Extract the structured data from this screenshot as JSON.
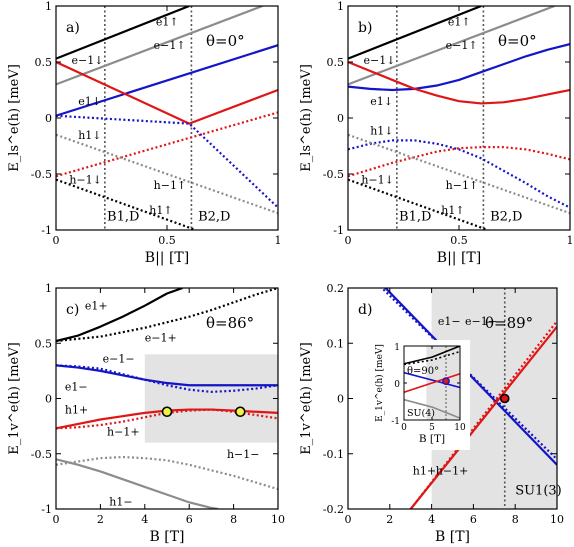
{
  "colors": {
    "black": "#000000",
    "gray": "#8c8c8c",
    "blue": "#1515c8",
    "red": "#e01515",
    "shade": "#e3e3e3",
    "marker": "#f2f246"
  },
  "chart_data": [
    {
      "id": "a",
      "type": "line",
      "panel_label": "a)",
      "annotation": "θ=0°",
      "xlabel": "B|| [T]",
      "ylabel": "E_ls^e(h) [meV]",
      "xlim": [
        0,
        1
      ],
      "ylim": [
        -1,
        1
      ],
      "xticks": [
        "0",
        "0.5",
        "1"
      ],
      "yticks": [
        "-1",
        "-0.5",
        "0",
        "0.5",
        "1"
      ],
      "vlines": [
        {
          "x": 0.22,
          "label": "B1,D"
        },
        {
          "x": 0.61,
          "label": "B2,D"
        }
      ],
      "series": [
        {
          "name": "e1↑",
          "color": "black",
          "dash": false,
          "x": [
            0,
            0.6
          ],
          "y": [
            0.53,
            1.0
          ]
        },
        {
          "name": "e−1↑",
          "color": "gray",
          "dash": false,
          "x": [
            0,
            0.93
          ],
          "y": [
            0.3,
            1.0
          ]
        },
        {
          "name": "e1↓",
          "color": "blue",
          "dash": false,
          "x": [
            0,
            1
          ],
          "y": [
            0.02,
            0.65
          ]
        },
        {
          "name": "e−1↓",
          "color": "red",
          "dash": false,
          "x": [
            0,
            0.6,
            1
          ],
          "y": [
            0.5,
            -0.05,
            0.25
          ]
        },
        {
          "name": "h1↓",
          "color": "blue",
          "dash": true,
          "x": [
            0,
            0.6,
            1
          ],
          "y": [
            0.02,
            -0.05,
            -0.8
          ]
        },
        {
          "name": "h−1↓",
          "color": "red",
          "dash": true,
          "x": [
            0,
            1
          ],
          "y": [
            -0.52,
            0.05
          ]
        },
        {
          "name": "h−1↑",
          "color": "gray",
          "dash": true,
          "x": [
            0,
            1
          ],
          "y": [
            -0.15,
            -0.85
          ]
        },
        {
          "name": "h1↑",
          "color": "black",
          "dash": true,
          "x": [
            0,
            0.63
          ],
          "y": [
            -0.55,
            -1.0
          ]
        }
      ]
    },
    {
      "id": "b",
      "type": "line",
      "panel_label": "b)",
      "annotation": "θ=0°",
      "xlabel": "B|| [T]",
      "ylabel": "E_ls^e(h) [meV]",
      "xlim": [
        0,
        1
      ],
      "ylim": [
        -1,
        1
      ],
      "xticks": [
        "0",
        "0.5",
        "1"
      ],
      "yticks": [
        "-1",
        "-0.5",
        "0",
        "0.5",
        "1"
      ],
      "vlines": [
        {
          "x": 0.22,
          "label": "B1,D"
        },
        {
          "x": 0.61,
          "label": "B2,D"
        }
      ],
      "series": [
        {
          "name": "e1↑",
          "color": "black",
          "dash": false,
          "x": [
            0,
            0.6
          ],
          "y": [
            0.53,
            1.0
          ]
        },
        {
          "name": "e−1↑",
          "color": "gray",
          "dash": false,
          "x": [
            0,
            0.93
          ],
          "y": [
            0.3,
            1.0
          ]
        },
        {
          "name": "e1↓",
          "color": "blue",
          "dash": false,
          "x": [
            0,
            0.1,
            0.2,
            0.3,
            0.4,
            0.5,
            0.6,
            0.7,
            0.8,
            0.9,
            1.0
          ],
          "y": [
            0.28,
            0.26,
            0.25,
            0.26,
            0.29,
            0.34,
            0.41,
            0.48,
            0.55,
            0.61,
            0.66
          ]
        },
        {
          "name": "e−1↓",
          "color": "red",
          "dash": false,
          "x": [
            0,
            0.1,
            0.2,
            0.3,
            0.4,
            0.5,
            0.6,
            0.7,
            0.8,
            0.9,
            1.0
          ],
          "y": [
            0.5,
            0.42,
            0.34,
            0.26,
            0.2,
            0.15,
            0.13,
            0.14,
            0.17,
            0.21,
            0.25
          ]
        },
        {
          "name": "h1↓",
          "color": "blue",
          "dash": true,
          "x": [
            0,
            0.1,
            0.2,
            0.3,
            0.4,
            0.5,
            0.6,
            0.7,
            0.8,
            0.9,
            1.0
          ],
          "y": [
            -0.28,
            -0.23,
            -0.2,
            -0.2,
            -0.23,
            -0.28,
            -0.36,
            -0.47,
            -0.58,
            -0.7,
            -0.8
          ]
        },
        {
          "name": "h−1↓",
          "color": "red",
          "dash": true,
          "x": [
            0,
            0.1,
            0.2,
            0.3,
            0.4,
            0.5,
            0.6,
            0.7,
            0.8,
            0.9,
            1.0
          ],
          "y": [
            -0.52,
            -0.46,
            -0.4,
            -0.35,
            -0.3,
            -0.27,
            -0.26,
            -0.26,
            -0.28,
            -0.32,
            -0.37
          ]
        },
        {
          "name": "h−1↑",
          "color": "gray",
          "dash": true,
          "x": [
            0,
            1
          ],
          "y": [
            -0.15,
            -0.85
          ]
        },
        {
          "name": "h1↑",
          "color": "black",
          "dash": true,
          "x": [
            0,
            0.63
          ],
          "y": [
            -0.55,
            -1.0
          ]
        }
      ]
    },
    {
      "id": "c",
      "type": "line",
      "panel_label": "c)",
      "annotation": "θ=86°",
      "xlabel": "B [T]",
      "ylabel": "E_1v^e(h) [meV]",
      "xlim": [
        0,
        10
      ],
      "ylim": [
        -1,
        1
      ],
      "xticks": [
        "0",
        "2",
        "4",
        "6",
        "8",
        "10"
      ],
      "yticks": [
        "-1",
        "-0.5",
        "0",
        "0.5",
        "1"
      ],
      "shade": {
        "x": [
          4,
          10
        ],
        "y": [
          -0.4,
          0.4
        ]
      },
      "markers": [
        {
          "x": 5.0,
          "y": -0.12
        },
        {
          "x": 8.3,
          "y": -0.12
        }
      ],
      "series": [
        {
          "name": "e1+",
          "color": "black",
          "dash": false,
          "x": [
            0,
            1,
            2,
            3,
            4,
            5,
            5.7
          ],
          "y": [
            0.52,
            0.57,
            0.65,
            0.74,
            0.84,
            0.95,
            1.0
          ]
        },
        {
          "name": "e−1+",
          "color": "black",
          "dash": true,
          "x": [
            0,
            1,
            2,
            3,
            4,
            5,
            6,
            7,
            8,
            9,
            10
          ],
          "y": [
            0.52,
            0.54,
            0.56,
            0.6,
            0.64,
            0.69,
            0.74,
            0.8,
            0.87,
            0.94,
            1.0
          ]
        },
        {
          "name": "e−1−",
          "color": "blue",
          "dash": true,
          "x": [
            0,
            1,
            2,
            3,
            4,
            5,
            6,
            7,
            8,
            9,
            10
          ],
          "y": [
            0.3,
            0.29,
            0.27,
            0.22,
            0.17,
            0.12,
            0.08,
            0.06,
            0.07,
            0.09,
            0.12
          ]
        },
        {
          "name": "e1−",
          "color": "blue",
          "dash": false,
          "x": [
            0,
            1,
            2,
            3,
            4,
            5,
            6,
            7,
            8,
            9,
            10
          ],
          "y": [
            0.3,
            0.28,
            0.25,
            0.21,
            0.17,
            0.14,
            0.12,
            0.12,
            0.12,
            0.12,
            0.12
          ]
        },
        {
          "name": "h1+",
          "color": "red",
          "dash": false,
          "x": [
            0,
            1,
            2,
            3,
            4,
            5,
            6,
            7,
            8,
            9,
            10
          ],
          "y": [
            -0.27,
            -0.23,
            -0.19,
            -0.16,
            -0.13,
            -0.11,
            -0.1,
            -0.1,
            -0.11,
            -0.12,
            -0.13
          ]
        },
        {
          "name": "h−1+",
          "color": "red",
          "dash": true,
          "x": [
            0,
            1,
            2,
            3,
            4,
            5,
            6,
            7,
            8,
            9,
            10
          ],
          "y": [
            -0.27,
            -0.26,
            -0.24,
            -0.21,
            -0.17,
            -0.13,
            -0.11,
            -0.1,
            -0.12,
            -0.15,
            -0.18
          ]
        },
        {
          "name": "h−1−",
          "color": "gray",
          "dash": true,
          "x": [
            0,
            1,
            2,
            3,
            4,
            5,
            6,
            7,
            8,
            9,
            10
          ],
          "y": [
            -0.6,
            -0.57,
            -0.54,
            -0.53,
            -0.54,
            -0.56,
            -0.6,
            -0.65,
            -0.7,
            -0.76,
            -0.82
          ]
        },
        {
          "name": "h1−",
          "color": "gray",
          "dash": false,
          "x": [
            0,
            1,
            2,
            3,
            4,
            5,
            6,
            7,
            7.3
          ],
          "y": [
            -0.55,
            -0.6,
            -0.66,
            -0.73,
            -0.8,
            -0.87,
            -0.94,
            -0.99,
            -1.0
          ]
        }
      ]
    },
    {
      "id": "d",
      "type": "line",
      "panel_label": "d)",
      "annotation": "θ=89°",
      "xlabel": "B [T]",
      "ylabel": "E_1v^e(h) [meV]",
      "xlim": [
        0,
        10
      ],
      "ylim": [
        -0.2,
        0.2
      ],
      "xticks": [
        "0",
        "2",
        "4",
        "6",
        "8",
        "10"
      ],
      "yticks": [
        "-0.2",
        "-0.1",
        "0",
        "0.1",
        "0.2"
      ],
      "shade": {
        "x": [
          4,
          10
        ],
        "y": [
          -0.2,
          0.2
        ]
      },
      "vlines": [
        {
          "x": 7.5,
          "label": "SU1(3)"
        }
      ],
      "markers": [
        {
          "x": 7.5,
          "y": 0.0
        }
      ],
      "series": [
        {
          "name": "e1−",
          "color": "blue",
          "dash": false,
          "x": [
            0,
            10
          ],
          "y": [
            0.27,
            -0.12
          ]
        },
        {
          "name": "e−1−",
          "color": "blue",
          "dash": true,
          "x": [
            0,
            10
          ],
          "y": [
            0.26,
            -0.11
          ]
        },
        {
          "name": "h1+",
          "color": "red",
          "dash": false,
          "x": [
            3,
            10
          ],
          "y": [
            -0.2,
            0.13
          ]
        },
        {
          "name": "h−1+",
          "color": "red",
          "dash": true,
          "x": [
            3,
            10
          ],
          "y": [
            -0.2,
            0.14
          ]
        }
      ],
      "inset": {
        "annotation": "θ=90°",
        "vlabel": "SU(4)",
        "xlabel": "B [T]",
        "ylabel": "E_1v^e(h) [meV]",
        "xlim": [
          0,
          10
        ],
        "ylim": [
          -1,
          1
        ],
        "xticks": [
          "0",
          "5",
          "10"
        ],
        "yticks": [
          "-1",
          "0",
          "1"
        ],
        "shade": {
          "x": [
            4,
            10
          ],
          "y": [
            -1,
            1
          ]
        },
        "vline": 7.5,
        "markers": [
          {
            "x": 7.5,
            "y": 0.05
          }
        ],
        "series": [
          {
            "color": "black",
            "dash": false,
            "x": [
              0,
              5,
              10
            ],
            "y": [
              0.52,
              0.7,
              1.0
            ]
          },
          {
            "color": "black",
            "dash": true,
            "x": [
              0,
              5,
              10
            ],
            "y": [
              0.5,
              0.62,
              0.85
            ]
          },
          {
            "color": "blue",
            "dash": false,
            "x": [
              0,
              10
            ],
            "y": [
              0.28,
              -0.12
            ]
          },
          {
            "color": "red",
            "dash": false,
            "x": [
              0,
              10
            ],
            "y": [
              -0.25,
              0.25
            ]
          },
          {
            "color": "gray",
            "dash": false,
            "x": [
              0,
              5,
              10
            ],
            "y": [
              -0.45,
              -0.65,
              -0.95
            ]
          }
        ]
      }
    }
  ]
}
